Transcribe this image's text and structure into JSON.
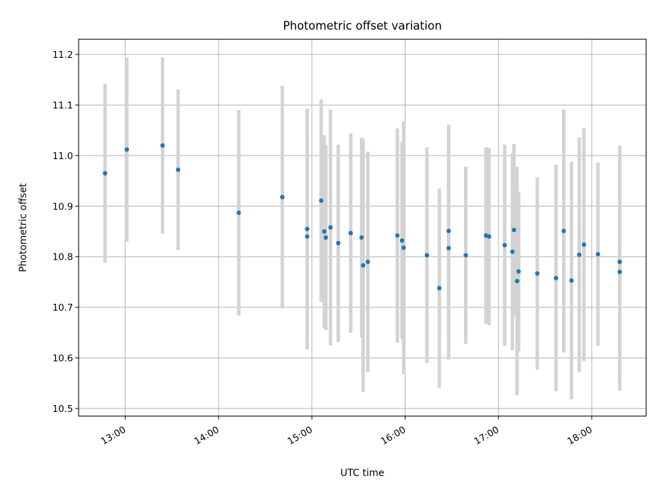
{
  "chart_data": {
    "type": "scatter",
    "title": "Photometric offset variation",
    "xlabel": "UTC time",
    "ylabel": "Photometric offset",
    "xlim": [
      "12:30",
      "18:35"
    ],
    "ylim": [
      10.485,
      11.23
    ],
    "x_ticks": [
      "13:00",
      "14:00",
      "15:00",
      "16:00",
      "17:00",
      "18:00"
    ],
    "y_ticks": [
      "10.5",
      "10.6",
      "10.7",
      "10.8",
      "10.9",
      "11.0",
      "11.1",
      "11.2"
    ],
    "grid": true,
    "colors": {
      "marker": "#1f77b4",
      "errorbar": "#d3d3d3",
      "grid": "#b0b0b0"
    },
    "series": [
      {
        "x": [
          "12:47",
          "13:01",
          "13:24",
          "13:34",
          "14:13",
          "14:41",
          "14:57",
          "14:57",
          "15:06",
          "15:08",
          "15:09",
          "15:12",
          "15:17",
          "15:25",
          "15:32",
          "15:33",
          "15:36",
          "15:55",
          "15:58",
          "15:59",
          "16:14",
          "16:22",
          "16:28",
          "16:28",
          "16:39",
          "16:52",
          "16:54",
          "17:04",
          "17:09",
          "17:10",
          "17:12",
          "17:13",
          "17:25",
          "17:37",
          "17:42",
          "17:47",
          "17:52",
          "17:55",
          "18:04",
          "18:18",
          "18:18"
        ],
        "y": [
          10.965,
          11.012,
          11.02,
          10.972,
          10.887,
          10.918,
          10.855,
          10.84,
          10.911,
          10.85,
          10.838,
          10.858,
          10.827,
          10.847,
          10.838,
          10.783,
          10.79,
          10.842,
          10.832,
          10.818,
          10.803,
          10.738,
          10.851,
          10.817,
          10.803,
          10.842,
          10.84,
          10.823,
          10.81,
          10.853,
          10.752,
          10.771,
          10.767,
          10.758,
          10.851,
          10.753,
          10.804,
          10.824,
          10.805,
          10.79,
          10.77
        ],
        "yerr": [
          0.177,
          0.182,
          0.174,
          0.159,
          0.203,
          0.22,
          0.238,
          0.2,
          0.2,
          0.19,
          0.183,
          0.233,
          0.195,
          0.197,
          0.197,
          0.25,
          0.218,
          0.212,
          0.195,
          0.25,
          0.213,
          0.197,
          0.21,
          0.22,
          0.175,
          0.175,
          0.175,
          0.199,
          0.195,
          0.17,
          0.226,
          0.158,
          0.19,
          0.224,
          0.24,
          0.235,
          0.232,
          0.23,
          0.181,
          0.23,
          0.235
        ]
      }
    ]
  }
}
